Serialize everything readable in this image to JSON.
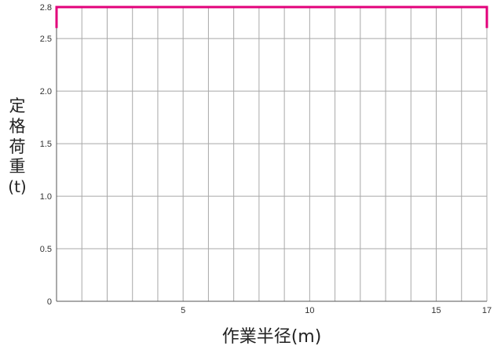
{
  "chart_data": {
    "type": "line",
    "title": "",
    "xlabel": "作業半径(m)",
    "ylabel_chars": [
      "定",
      "格",
      "荷",
      "重",
      "(t)"
    ],
    "xlim": [
      0,
      17
    ],
    "ylim": [
      0,
      2.8
    ],
    "x_tick_labels": [
      {
        "value": 5,
        "label": "5"
      },
      {
        "value": 10,
        "label": "10"
      },
      {
        "value": 15,
        "label": "15"
      },
      {
        "value": 17,
        "label": "17"
      }
    ],
    "y_tick_labels": [
      {
        "value": 0,
        "label": "0"
      },
      {
        "value": 0.5,
        "label": "0.5"
      },
      {
        "value": 1.0,
        "label": "1.0"
      },
      {
        "value": 1.5,
        "label": "1.5"
      },
      {
        "value": 2.0,
        "label": "2.0"
      },
      {
        "value": 2.5,
        "label": "2.5"
      },
      {
        "value": 2.8,
        "label": "2.8"
      }
    ],
    "grid": true,
    "grid_x_step": 1,
    "grid_y_step": 0.5,
    "legend": "none",
    "series": [
      {
        "color": "#e2007a",
        "points": [
          [
            0,
            2.6
          ],
          [
            0,
            2.8
          ],
          [
            17,
            2.8
          ],
          [
            17,
            2.6
          ]
        ]
      }
    ]
  }
}
